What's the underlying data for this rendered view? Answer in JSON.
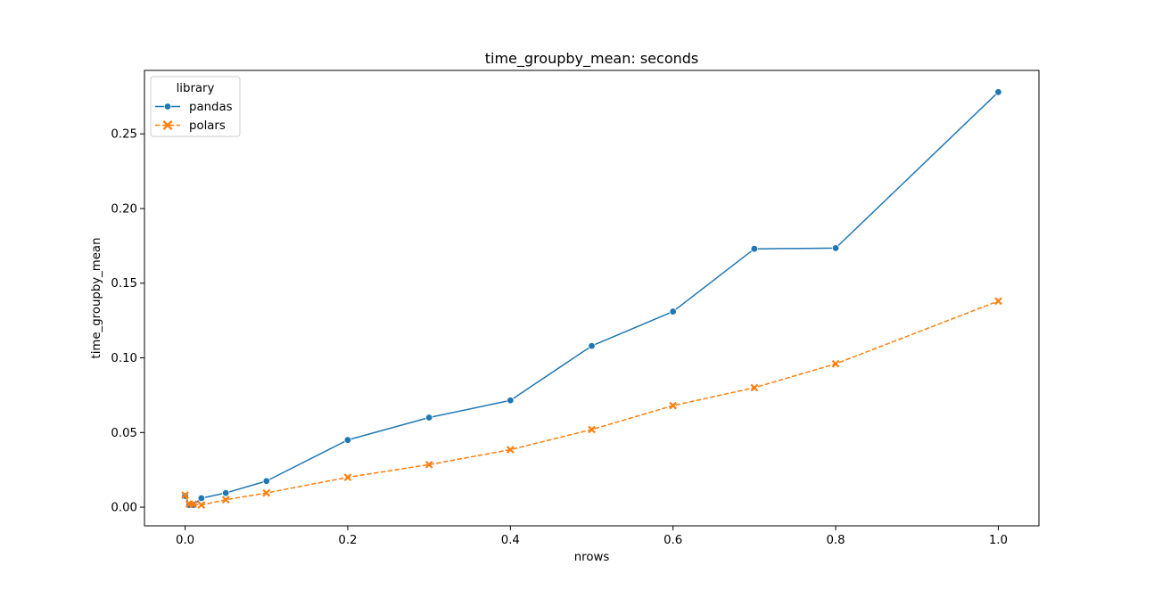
{
  "chart_data": {
    "type": "line",
    "title": "time_groupby_mean: seconds",
    "xlabel": "nrows",
    "ylabel": "time_groupby_mean",
    "xlim": [
      -0.05,
      1.05
    ],
    "ylim": [
      -0.0125,
      0.2925
    ],
    "xticks": [
      0.0,
      0.2,
      0.4,
      0.6,
      0.8,
      1.0
    ],
    "xtick_labels": [
      "0.0",
      "0.2",
      "0.4",
      "0.6",
      "0.8",
      "1.0"
    ],
    "yticks": [
      0.0,
      0.05,
      0.1,
      0.15,
      0.2,
      0.25
    ],
    "ytick_labels": [
      "0.00",
      "0.05",
      "0.10",
      "0.15",
      "0.20",
      "0.25"
    ],
    "grid": false,
    "legend": {
      "title": "library",
      "placement": "top-left"
    },
    "series": [
      {
        "name": "pandas",
        "color": "#1f77b4",
        "marker": "circle",
        "linestyle": "solid",
        "x": [
          0.0,
          0.005,
          0.01,
          0.02,
          0.05,
          0.1,
          0.2,
          0.3,
          0.4,
          0.5,
          0.6,
          0.7,
          0.8,
          1.0
        ],
        "y": [
          0.0075,
          0.0015,
          0.0015,
          0.006,
          0.0095,
          0.0175,
          0.045,
          0.06,
          0.0715,
          0.108,
          0.131,
          0.173,
          0.1735,
          0.278
        ]
      },
      {
        "name": "polars",
        "color": "#ff7f0e",
        "marker": "x",
        "linestyle": "dashed",
        "x": [
          0.0,
          0.005,
          0.01,
          0.02,
          0.05,
          0.1,
          0.2,
          0.3,
          0.4,
          0.5,
          0.6,
          0.7,
          0.8,
          1.0
        ],
        "y": [
          0.008,
          0.002,
          0.002,
          0.0015,
          0.005,
          0.0095,
          0.02,
          0.0285,
          0.0385,
          0.052,
          0.068,
          0.08,
          0.096,
          0.138
        ]
      }
    ]
  }
}
